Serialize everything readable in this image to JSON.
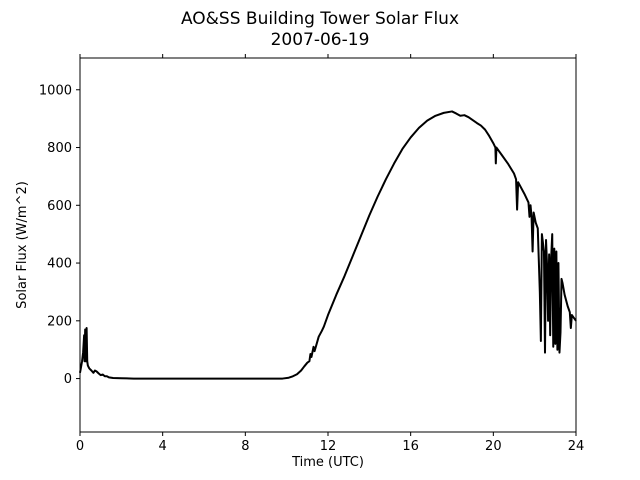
{
  "chart_data": {
    "type": "line",
    "title": "AO&SS Building Tower Solar Flux",
    "subtitle": "2007-06-19",
    "xlabel": "Time (UTC)",
    "ylabel": "Solar Flux (W/m^2)",
    "xlim": [
      0,
      24
    ],
    "ylim": [
      -185,
      1110
    ],
    "xticks": [
      0,
      4,
      8,
      12,
      16,
      20,
      24
    ],
    "yticks": [
      0,
      200,
      400,
      600,
      800,
      1000
    ],
    "grid": false,
    "legend": "none",
    "line_color": "#000000",
    "series": [
      {
        "points": [
          [
            0.0,
            20
          ],
          [
            0.1,
            60
          ],
          [
            0.15,
            90
          ],
          [
            0.2,
            150
          ],
          [
            0.22,
            60
          ],
          [
            0.25,
            170
          ],
          [
            0.28,
            60
          ],
          [
            0.32,
            175
          ],
          [
            0.35,
            60
          ],
          [
            0.38,
            45
          ],
          [
            0.45,
            35
          ],
          [
            0.55,
            28
          ],
          [
            0.65,
            20
          ],
          [
            0.72,
            28
          ],
          [
            0.8,
            25
          ],
          [
            0.9,
            18
          ],
          [
            1.0,
            12
          ],
          [
            1.1,
            14
          ],
          [
            1.2,
            8
          ],
          [
            1.3,
            8
          ],
          [
            1.4,
            4
          ],
          [
            1.6,
            2
          ],
          [
            2.0,
            1
          ],
          [
            2.6,
            0
          ],
          [
            3.0,
            0
          ],
          [
            4.0,
            0
          ],
          [
            5.0,
            0
          ],
          [
            6.0,
            0
          ],
          [
            7.0,
            0
          ],
          [
            8.0,
            0
          ],
          [
            9.0,
            0
          ],
          [
            9.8,
            0
          ],
          [
            10.1,
            3
          ],
          [
            10.3,
            8
          ],
          [
            10.5,
            15
          ],
          [
            10.7,
            28
          ],
          [
            10.85,
            42
          ],
          [
            11.0,
            55
          ],
          [
            11.1,
            60
          ],
          [
            11.15,
            85
          ],
          [
            11.2,
            75
          ],
          [
            11.3,
            110
          ],
          [
            11.35,
            95
          ],
          [
            11.45,
            120
          ],
          [
            11.55,
            145
          ],
          [
            11.7,
            165
          ],
          [
            11.8,
            180
          ],
          [
            12.0,
            220
          ],
          [
            12.4,
            290
          ],
          [
            12.8,
            355
          ],
          [
            13.2,
            425
          ],
          [
            13.6,
            495
          ],
          [
            14.0,
            565
          ],
          [
            14.4,
            630
          ],
          [
            14.8,
            690
          ],
          [
            15.2,
            745
          ],
          [
            15.6,
            795
          ],
          [
            16.0,
            835
          ],
          [
            16.4,
            868
          ],
          [
            16.8,
            893
          ],
          [
            17.2,
            910
          ],
          [
            17.6,
            920
          ],
          [
            18.0,
            925
          ],
          [
            18.2,
            918
          ],
          [
            18.4,
            910
          ],
          [
            18.6,
            912
          ],
          [
            18.8,
            905
          ],
          [
            19.0,
            895
          ],
          [
            19.2,
            885
          ],
          [
            19.4,
            876
          ],
          [
            19.6,
            862
          ],
          [
            19.8,
            840
          ],
          [
            20.0,
            815
          ],
          [
            20.1,
            800
          ],
          [
            20.12,
            745
          ],
          [
            20.15,
            800
          ],
          [
            20.4,
            775
          ],
          [
            20.7,
            745
          ],
          [
            21.0,
            710
          ],
          [
            21.1,
            690
          ],
          [
            21.15,
            585
          ],
          [
            21.2,
            680
          ],
          [
            21.5,
            640
          ],
          [
            21.7,
            610
          ],
          [
            21.75,
            560
          ],
          [
            21.8,
            600
          ],
          [
            21.85,
            560
          ],
          [
            21.9,
            440
          ],
          [
            21.95,
            575
          ],
          [
            22.05,
            540
          ],
          [
            22.15,
            520
          ],
          [
            22.25,
            300
          ],
          [
            22.3,
            130
          ],
          [
            22.35,
            500
          ],
          [
            22.45,
            440
          ],
          [
            22.5,
            90
          ],
          [
            22.55,
            480
          ],
          [
            22.6,
            390
          ],
          [
            22.65,
            200
          ],
          [
            22.7,
            430
          ],
          [
            22.75,
            150
          ],
          [
            22.8,
            420
          ],
          [
            22.85,
            500
          ],
          [
            22.9,
            110
          ],
          [
            22.95,
            450
          ],
          [
            23.0,
            120
          ],
          [
            23.05,
            440
          ],
          [
            23.1,
            100
          ],
          [
            23.15,
            400
          ],
          [
            23.2,
            90
          ],
          [
            23.25,
            160
          ],
          [
            23.3,
            345
          ],
          [
            23.35,
            330
          ],
          [
            23.45,
            290
          ],
          [
            23.6,
            250
          ],
          [
            23.7,
            230
          ],
          [
            23.75,
            175
          ],
          [
            23.8,
            220
          ],
          [
            23.9,
            210
          ],
          [
            24.0,
            200
          ]
        ]
      }
    ]
  }
}
